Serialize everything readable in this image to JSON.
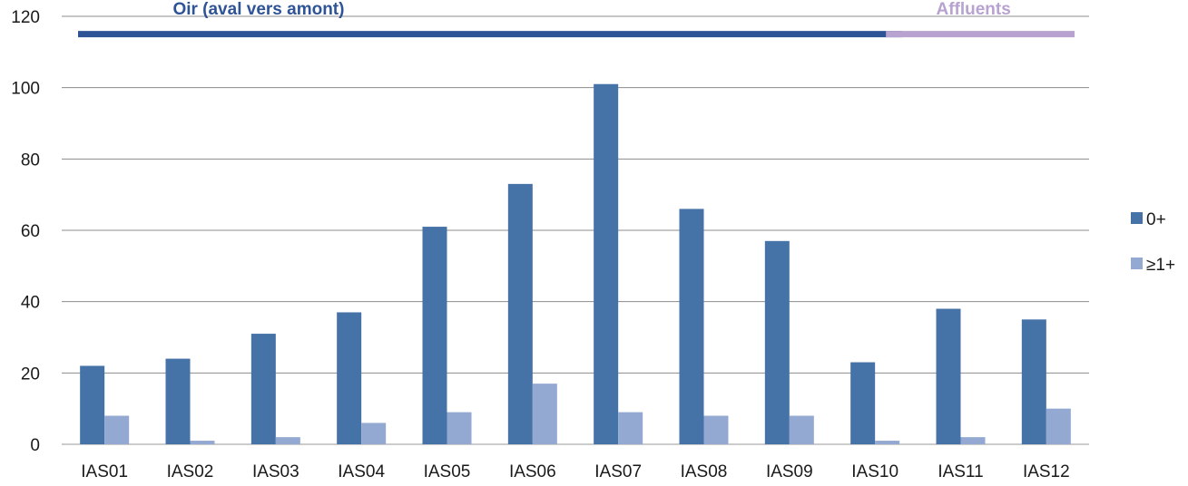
{
  "chart_data": {
    "type": "bar",
    "categories": [
      "IAS01",
      "IAS02",
      "IAS03",
      "IAS04",
      "IAS05",
      "IAS06",
      "IAS07",
      "IAS08",
      "IAS09",
      "IAS10",
      "IAS11",
      "IAS12"
    ],
    "series": [
      {
        "name": "0+",
        "color": "#4572a7",
        "values": [
          22,
          24,
          31,
          37,
          61,
          73,
          101,
          66,
          57,
          23,
          38,
          35
        ]
      },
      {
        "name": "≥1+",
        "color": "#93a9d2",
        "values": [
          8,
          1,
          2,
          6,
          9,
          17,
          9,
          8,
          8,
          1,
          2,
          10
        ]
      }
    ],
    "ylim": [
      0,
      120
    ],
    "yticks": [
      0,
      20,
      40,
      60,
      80,
      100,
      120
    ],
    "grid": true,
    "legend": "right",
    "annotations": [
      {
        "text": "Oir (aval vers amont)",
        "color": "#2f5496",
        "line_color": "#2f5496",
        "from": "IAS01",
        "to": "IAS10",
        "y": 115
      },
      {
        "text": "Affluents",
        "color": "#b7a2d0",
        "line_color": "#b7a2d0",
        "from": "IAS10",
        "to": "IAS12",
        "y": 115
      }
    ]
  }
}
